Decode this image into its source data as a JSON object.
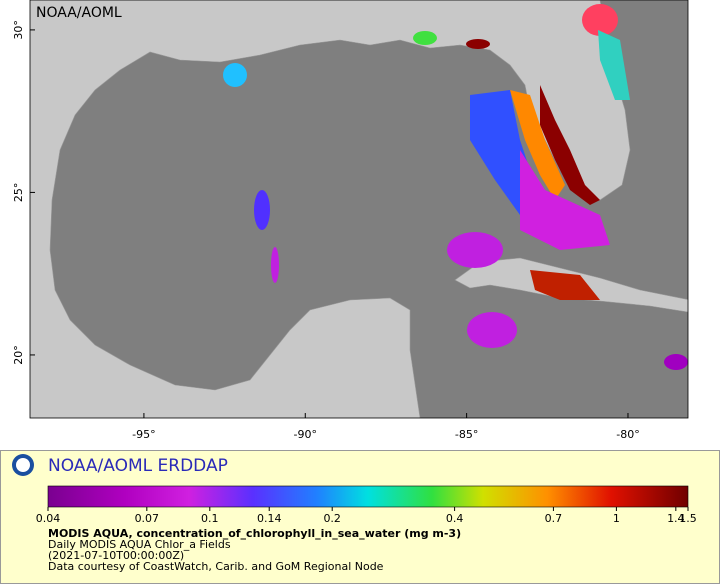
{
  "map": {
    "label": "NOAA/AOML",
    "xlim": [
      -98.53,
      -78.14
    ],
    "ylim": [
      18.06,
      30.92
    ],
    "xticks": [
      {
        "value": -95,
        "label": "-95°"
      },
      {
        "value": -90,
        "label": "-90°"
      },
      {
        "value": -85,
        "label": "-85°"
      },
      {
        "value": -80,
        "label": "-80°"
      }
    ],
    "yticks": [
      {
        "value": 20,
        "label": "20°"
      },
      {
        "value": 25,
        "label": "25°"
      },
      {
        "value": 30,
        "label": "30°"
      }
    ]
  },
  "legend": {
    "title": "NOAA/AOML ERDDAP",
    "colorbar": {
      "lim": [
        0.04,
        1.5
      ],
      "scale": "log",
      "ticks": [
        0.04,
        0.07,
        0.1,
        0.14,
        0.2,
        0.4,
        0.7,
        1,
        1.4,
        1.5
      ]
    },
    "variable": "MODIS AQUA, concentration_of_chlorophyll_in_sea_water (mg m-3)",
    "lines": [
      "Daily MODIS AQUA Chlor_a Fields",
      "(2021-07-10T00:00:00Z)",
      "Data courtesy of CoastWatch, Carib. and GoM Regional Node"
    ]
  }
}
